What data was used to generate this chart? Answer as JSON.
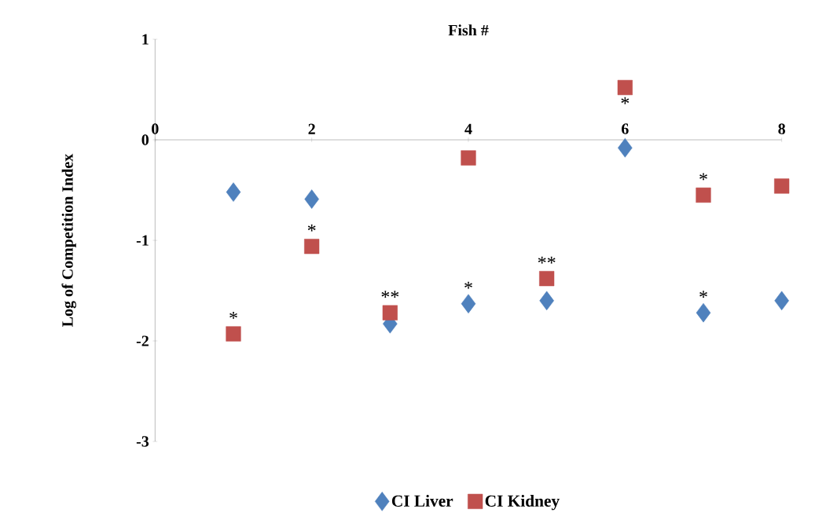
{
  "chart_data": {
    "type": "scatter",
    "xlabel": "Fish #",
    "ylabel": "Log of Competition Index",
    "x": [
      1,
      2,
      3,
      4,
      5,
      6,
      7,
      8
    ],
    "series": [
      {
        "name": "CI Liver",
        "color": "#4f81bd",
        "marker": "diamond",
        "values": [
          -0.52,
          -0.59,
          -1.83,
          -1.63,
          -1.6,
          -0.08,
          -1.72,
          -1.6
        ]
      },
      {
        "name": "CI Kidney",
        "color": "#c0504d",
        "marker": "square",
        "values": [
          -1.93,
          -1.06,
          -1.72,
          -0.18,
          -1.38,
          0.52,
          -0.55,
          -0.46
        ]
      }
    ],
    "annotations": [
      {
        "text": "*",
        "x": 1,
        "y": -1.93
      },
      {
        "text": "*",
        "x": 2,
        "y": -1.06
      },
      {
        "text": "**",
        "x": 3,
        "y": -1.72
      },
      {
        "text": "*",
        "x": 4,
        "y": -1.63
      },
      {
        "text": "**",
        "x": 5,
        "y": -1.38
      },
      {
        "text": "*",
        "x": 6,
        "y": 0.52
      },
      {
        "text": "*",
        "x": 7,
        "y": -0.55
      },
      {
        "text": "*",
        "x": 7,
        "y": -1.72
      }
    ],
    "xlim": [
      0,
      8
    ],
    "ylim": [
      -3,
      1
    ],
    "xticks": [
      0,
      2,
      4,
      6,
      8
    ],
    "yticks": [
      -3,
      -2,
      -1,
      0,
      1
    ],
    "grid": false,
    "legend": "bottom"
  }
}
